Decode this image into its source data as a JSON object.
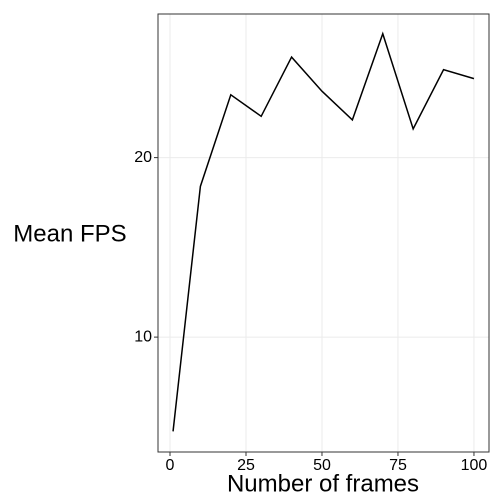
{
  "chart_data": {
    "type": "line",
    "x_label": "Number of frames",
    "y_label": "Mean FPS",
    "x": [
      1,
      10,
      20,
      30,
      40,
      50,
      60,
      70,
      80,
      90,
      100
    ],
    "series": [
      {
        "name": "Mean FPS",
        "color": "#000000",
        "values": [
          4.75,
          18.4,
          23.5,
          22.3,
          25.6,
          23.7,
          22.1,
          26.9,
          21.6,
          24.9,
          24.4
        ]
      }
    ],
    "xlim": [
      -3.95,
      104.95
    ],
    "xticks": [
      0,
      25,
      50,
      75,
      100
    ],
    "ylim": [
      3.6,
      28.0
    ],
    "yticks": [
      10,
      20
    ],
    "grid": true
  }
}
